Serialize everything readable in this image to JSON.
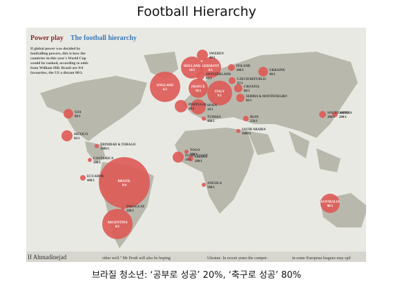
{
  "header": {
    "title": "Football Hierarchy"
  },
  "photo": {
    "headline": {
      "lead": "Power play",
      "title": "The football hierarchy"
    },
    "intro": [
      "If global power was decided by",
      "footballing powers, this is how the",
      "countries in this year's World Cup",
      "would be ranked, according to odds",
      "from William Hill. Brazil are 9/4",
      "favourites, the US a distant 80/1."
    ],
    "countries": [
      {
        "label": "BRAZIL",
        "odds": "9/4"
      },
      {
        "label": "ARGENTINA",
        "odds": "8/1"
      },
      {
        "label": "PARAGUAY",
        "odds": "200/1"
      },
      {
        "label": "ECUADOR",
        "odds": "400/1"
      },
      {
        "label": "COSTA RICA",
        "odds": "500/1"
      },
      {
        "label": "TRINIDAD & TOBAGO",
        "odds": "1000/1"
      },
      {
        "label": "MEXICO",
        "odds": "66/1"
      },
      {
        "label": "USA",
        "odds": "80/1"
      },
      {
        "label": "ENGLAND",
        "odds": "6/1"
      },
      {
        "label": "HOLLAND",
        "odds": "14/1"
      },
      {
        "label": "GERMANY",
        "odds": "8/1"
      },
      {
        "label": "SWEDEN",
        "odds": "40/1"
      },
      {
        "label": "POLAND",
        "odds": "100/1"
      },
      {
        "label": "UKRAINE",
        "odds": "40/1"
      },
      {
        "label": "CZECH REPUBLIC",
        "odds": "25/1"
      },
      {
        "label": "SWITZERLAND",
        "odds": "66/1"
      },
      {
        "label": "FRANCE",
        "odds": "10/1"
      },
      {
        "label": "ITALY",
        "odds": "9/1"
      },
      {
        "label": "CROATIA",
        "odds": "66/1"
      },
      {
        "label": "SERBIA & MONTENEGRO",
        "odds": "66/1"
      },
      {
        "label": "SPAIN",
        "odds": "14/1"
      },
      {
        "label": "PORTUGAL",
        "odds": "20/1"
      },
      {
        "label": "TUNISIA",
        "odds": "400/1"
      },
      {
        "label": "IRAN",
        "odds": "250/1"
      },
      {
        "label": "SAUDI ARABIA",
        "odds": "1000/1"
      },
      {
        "label": "JAPAN",
        "odds": "200/1"
      },
      {
        "label": "SOUTH KOREA",
        "odds": "200/1"
      },
      {
        "label": "AUSTRALIA",
        "odds": "80/1"
      },
      {
        "label": "ANGOLA",
        "odds": "500/1"
      },
      {
        "label": "GHANA",
        "odds": "200/1"
      },
      {
        "label": "TOGO",
        "odds": "500/1"
      },
      {
        "label": "IVORY COAST",
        "odds": "50/1"
      }
    ],
    "footer_snippets": [
      "If Ahmadinejad",
      "other well.\" Mr Prodi will also be hoping",
      "Ukraine. In recent years the compet-",
      "in some European leagues may spil"
    ]
  },
  "caption": "브라질 청소년: ‘공부로 성공’ 20%, ‘축구로 성공’ 80%"
}
